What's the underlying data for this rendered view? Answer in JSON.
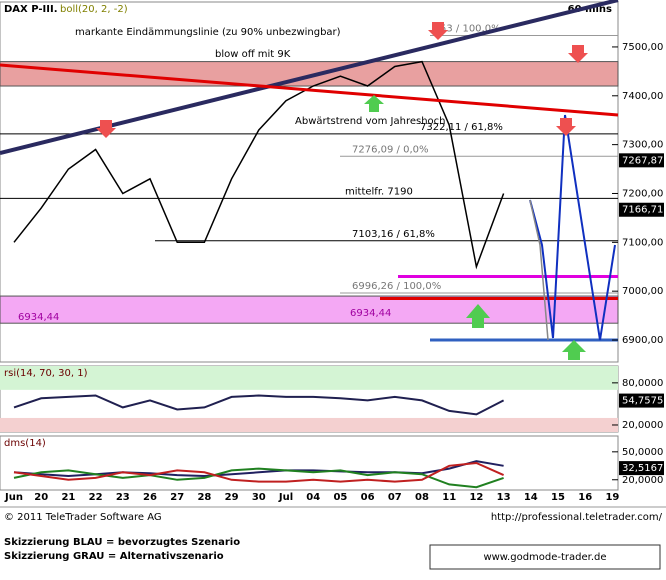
{
  "chart_data": [
    {
      "type": "line",
      "title": "DAX P-III.",
      "subtitle": "boll(20, 2, -2)",
      "timeframe": "60 mins",
      "categories": [
        "Jun",
        "20",
        "21",
        "22",
        "23",
        "26",
        "27",
        "28",
        "29",
        "30",
        "Jul",
        "04",
        "05",
        "06",
        "07",
        "08",
        "11",
        "12",
        "13",
        "14",
        "15",
        "16",
        "19"
      ],
      "series": [
        {
          "color": "#000000",
          "values": [
            7100,
            7170,
            7250,
            7290,
            7200,
            7230,
            7100,
            7100,
            7230,
            7330,
            7390,
            7420,
            7440,
            7420,
            7460,
            7470,
            7340,
            7050,
            7200,
            null,
            null,
            null,
            null
          ]
        }
      ],
      "ylim": [
        6855,
        7592
      ],
      "yticks": [
        {
          "value": 6900,
          "label": "6900,00"
        },
        {
          "value": 7000,
          "label": "7000,00"
        },
        {
          "value": 7100,
          "label": "7100,00"
        },
        {
          "value": 7200,
          "label": "7200,00"
        },
        {
          "value": 7300,
          "label": "7300,00"
        },
        {
          "value": 7400,
          "label": "7400,00"
        },
        {
          "value": 7500,
          "label": "7500,00"
        }
      ],
      "zones": [
        {
          "from": 7420,
          "to": 7470,
          "color": "#e8a0a0"
        },
        {
          "from": 6934.44,
          "to": 6990,
          "color": "#f4a8f4",
          "label": "6934,44"
        }
      ],
      "levels": [
        {
          "value": 7523.53,
          "label": "53 / 100,0%",
          "color": "#999999"
        },
        {
          "value": 7322.11,
          "label": "7322,11 / 61,8%",
          "color": "#000000"
        },
        {
          "value": 7276.09,
          "label": "7276,09 / 0,0%",
          "color": "#999999"
        },
        {
          "value": 7190,
          "label": "mittelfr. 7190",
          "color": "#000000"
        },
        {
          "value": 7103.16,
          "label": "7103,16 / 61,8%",
          "color": "#000000"
        },
        {
          "value": 6996.26,
          "label": "6996,26 / 100,0%",
          "color": "#999999"
        },
        {
          "value": 6985,
          "color": "#e00000"
        },
        {
          "value": 7030,
          "color": "#e000e0"
        },
        {
          "value": 6900,
          "color": "#3060c0"
        }
      ],
      "price_tags": [
        {
          "value": 7267.87,
          "label": "7267,87"
        },
        {
          "value": 7166.71,
          "label": "7166,71"
        }
      ],
      "annotations": [
        "markante Eindämmungslinie (zu 90% unbezwingbar)",
        "blow off mit 9K",
        "Abwärtstrend vom Jahreshoch"
      ]
    },
    {
      "type": "line",
      "title": "rsi(14, 70, 30, 1)",
      "series": [
        {
          "color": "#202050",
          "values": [
            45,
            58,
            60,
            62,
            45,
            55,
            42,
            45,
            60,
            62,
            60,
            60,
            58,
            55,
            60,
            55,
            40,
            35,
            55,
            null,
            null,
            null,
            null
          ]
        }
      ],
      "ylim": [
        10,
        104
      ],
      "yticks": [
        {
          "value": 80,
          "label": "80,0000"
        },
        {
          "value": 20,
          "label": "20,0000"
        }
      ],
      "zones": [
        {
          "from": 70,
          "to": 104,
          "color": "#d4f4d4"
        },
        {
          "from": 10,
          "to": 30,
          "color": "#f4d0d0"
        }
      ],
      "price_tags": [
        {
          "value": 54.7575,
          "label": "54,7575"
        }
      ]
    },
    {
      "type": "line",
      "title": "dms(14)",
      "series": [
        {
          "color": "#202060",
          "values": [
            28,
            26,
            24,
            26,
            28,
            27,
            25,
            24,
            26,
            28,
            30,
            30,
            29,
            28,
            28,
            27,
            32,
            40,
            35,
            null,
            null,
            null,
            null
          ]
        },
        {
          "color": "#208020",
          "values": [
            22,
            28,
            30,
            26,
            22,
            25,
            20,
            22,
            30,
            32,
            30,
            28,
            30,
            25,
            28,
            26,
            15,
            12,
            22,
            null,
            null,
            null,
            null
          ]
        },
        {
          "color": "#c02020",
          "values": [
            28,
            24,
            20,
            22,
            28,
            25,
            30,
            28,
            20,
            18,
            18,
            20,
            18,
            20,
            18,
            20,
            35,
            38,
            25,
            null,
            null,
            null,
            null
          ]
        }
      ],
      "ylim": [
        9,
        67
      ],
      "yticks": [
        {
          "value": 50,
          "label": "50,0000"
        },
        {
          "value": 20,
          "label": "20,0000"
        }
      ],
      "price_tags": [
        {
          "value": 32.5167,
          "label": "32,5167"
        }
      ]
    }
  ],
  "footer": {
    "copyright": "© 2011 TeleTrader Software AG",
    "url": "http://professional.teletrader.com/",
    "legend_blue": "Skizzierung BLAU = bevorzugtes Szenario",
    "legend_grey": "Skizzierung GRAU = Alternativszenario",
    "website": "www.godmode-trader.de"
  }
}
